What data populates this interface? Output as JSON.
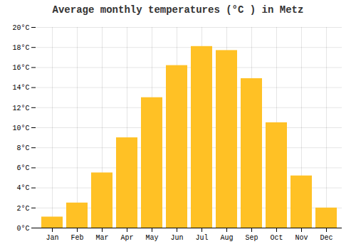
{
  "chart_data": {
    "type": "bar",
    "title": "Average monthly temperatures (°C ) in Metz",
    "categories": [
      "Jan",
      "Feb",
      "Mar",
      "Apr",
      "May",
      "Jun",
      "Jul",
      "Aug",
      "Sep",
      "Oct",
      "Nov",
      "Dec"
    ],
    "values": [
      1.1,
      2.5,
      5.5,
      9.0,
      13.0,
      16.2,
      18.1,
      17.7,
      14.9,
      10.5,
      5.2,
      2.0
    ],
    "color": "#FFC125",
    "ylim": [
      0,
      20
    ],
    "yticks": [
      {
        "value": 0,
        "label": "0°C"
      },
      {
        "value": 2,
        "label": "2°C"
      },
      {
        "value": 4,
        "label": "4°C"
      },
      {
        "value": 6,
        "label": "6°C"
      },
      {
        "value": 8,
        "label": "8°C"
      },
      {
        "value": 10,
        "label": "10°C"
      },
      {
        "value": 12,
        "label": "12°C"
      },
      {
        "value": 14,
        "label": "14°C"
      },
      {
        "value": 16,
        "label": "16°C"
      },
      {
        "value": 18,
        "label": "18°C"
      },
      {
        "value": 20,
        "label": "20°C"
      }
    ],
    "grid": true
  }
}
